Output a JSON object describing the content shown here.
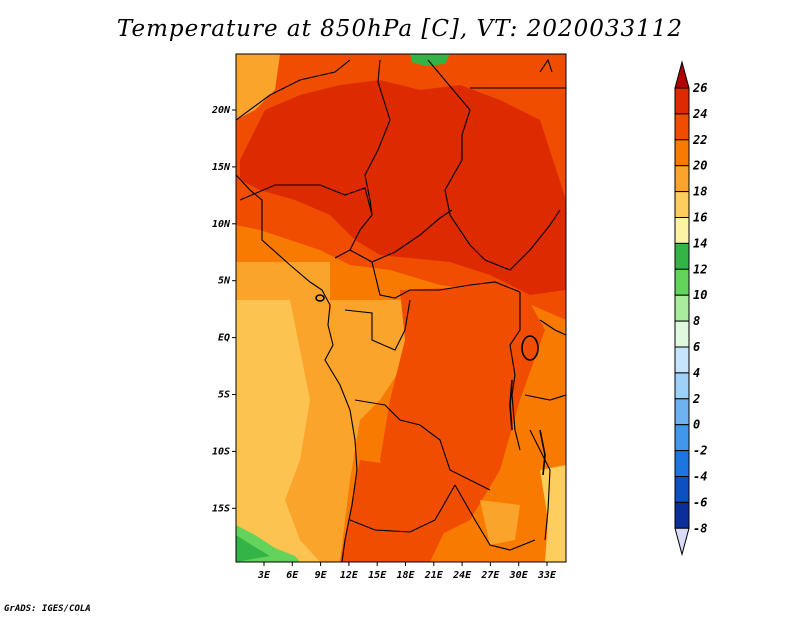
{
  "title": "Temperature at 850hPa [C], VT: 2020033112",
  "credit": "GrADS: IGES/COLA",
  "map": {
    "lat_labels": [
      "20N",
      "15N",
      "10N",
      "5N",
      "EQ",
      "5S",
      "10S",
      "15S"
    ],
    "lon_labels": [
      "3E",
      "6E",
      "9E",
      "12E",
      "15E",
      "18E",
      "21E",
      "24E",
      "27E",
      "30E",
      "33E"
    ]
  },
  "colorbar": {
    "labels": [
      "26",
      "24",
      "22",
      "20",
      "18",
      "16",
      "14",
      "12",
      "10",
      "8",
      "6",
      "4",
      "2",
      "0",
      "-2",
      "-4",
      "-6",
      "-8"
    ],
    "colors": [
      "#c00000",
      "#dd2a00",
      "#f04d00",
      "#f97a00",
      "#fba42b",
      "#fdcd5d",
      "#fef3a4",
      "#34b446",
      "#64d35c",
      "#a9ec9d",
      "#dff8de",
      "#c6e4fb",
      "#9ed0f8",
      "#6eb2f2",
      "#4197eb",
      "#1d76e0",
      "#0e4fc2",
      "#0a2f9a",
      "#041670"
    ],
    "top_arrow_color": "#b00000",
    "bottom_arrow_color": "#d8dcf8"
  }
}
